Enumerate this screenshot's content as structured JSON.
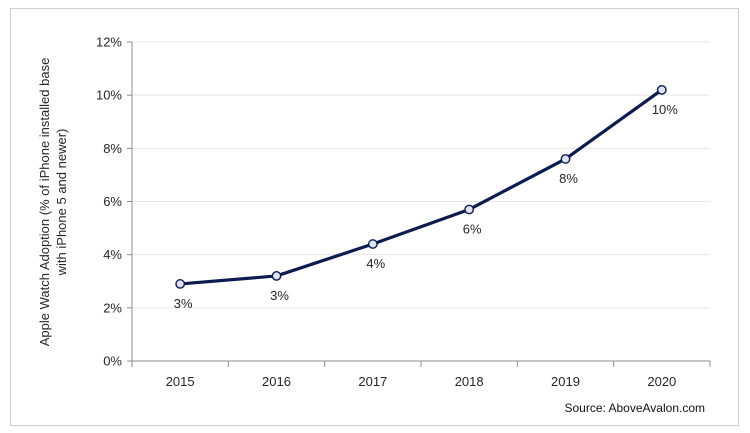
{
  "chart_data": {
    "type": "line",
    "title": "",
    "xlabel": "",
    "ylabel": "Apple Watch Adoption (% of iPhone installed base with iPhone 5 and newer)",
    "ylabel_lines": [
      "Apple Watch Adoption (% of iPhone installed base",
      "with iPhone 5 and newer)"
    ],
    "categories": [
      "2015",
      "2016",
      "2017",
      "2018",
      "2019",
      "2020"
    ],
    "series": [
      {
        "values": [
          2.9,
          3.2,
          4.4,
          5.7,
          7.6,
          10.2
        ],
        "data_labels": [
          "3%",
          "3%",
          "4%",
          "6%",
          "8%",
          "10%"
        ]
      }
    ],
    "ylim": [
      0,
      12
    ],
    "yticks": [
      0,
      2,
      4,
      6,
      8,
      10,
      12
    ],
    "ytick_labels": [
      "0%",
      "2%",
      "4%",
      "6%",
      "8%",
      "10%",
      "12%"
    ],
    "grid": true,
    "legend": "none",
    "source": "Source: AboveAvalon.com",
    "colors": {
      "line": "#0d1b4f",
      "marker_fill": "#dfe3ef",
      "grid": "#e6e6e6",
      "axis": "#8c8c8c",
      "text": "#262626"
    }
  }
}
